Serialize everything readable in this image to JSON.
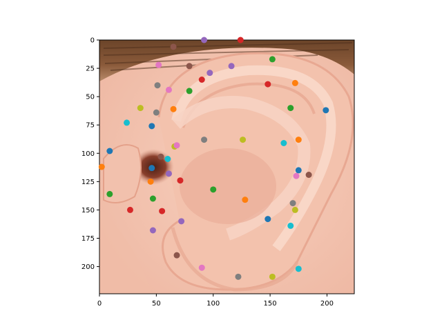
{
  "chart_data": {
    "type": "scatter",
    "title": "",
    "xlabel": "",
    "ylabel": "",
    "xlim": [
      0,
      224
    ],
    "ylim": [
      224,
      0
    ],
    "x_ticks": [
      0,
      50,
      100,
      150,
      200
    ],
    "y_ticks": [
      0,
      25,
      50,
      75,
      100,
      125,
      150,
      175,
      200
    ],
    "background": "photo of a human ear (right ear, side view)",
    "grid": false,
    "legend": "none",
    "points": [
      {
        "x": 92,
        "y": 0,
        "color": "#9467bd"
      },
      {
        "x": 124,
        "y": 0,
        "color": "#d62728"
      },
      {
        "x": 65,
        "y": 6,
        "color": "#8c564b"
      },
      {
        "x": 152,
        "y": 17,
        "color": "#2ca02c"
      },
      {
        "x": 52,
        "y": 22,
        "color": "#e377c2"
      },
      {
        "x": 79,
        "y": 23,
        "color": "#8c564b"
      },
      {
        "x": 116,
        "y": 23,
        "color": "#9467bd"
      },
      {
        "x": 97,
        "y": 29,
        "color": "#9467bd"
      },
      {
        "x": 90,
        "y": 35,
        "color": "#d62728"
      },
      {
        "x": 148,
        "y": 39,
        "color": "#d62728"
      },
      {
        "x": 172,
        "y": 38,
        "color": "#ff7f0e"
      },
      {
        "x": 51,
        "y": 40,
        "color": "#7f7f7f"
      },
      {
        "x": 61,
        "y": 44,
        "color": "#e377c2"
      },
      {
        "x": 79,
        "y": 45,
        "color": "#2ca02c"
      },
      {
        "x": 36,
        "y": 60,
        "color": "#bcbd22"
      },
      {
        "x": 65,
        "y": 61,
        "color": "#ff7f0e"
      },
      {
        "x": 50,
        "y": 64,
        "color": "#7f7f7f"
      },
      {
        "x": 168,
        "y": 60,
        "color": "#2ca02c"
      },
      {
        "x": 199,
        "y": 62,
        "color": "#1f77b4"
      },
      {
        "x": 24,
        "y": 73,
        "color": "#17becf"
      },
      {
        "x": 46,
        "y": 76,
        "color": "#1f77b4"
      },
      {
        "x": 9,
        "y": 98,
        "color": "#1f77b4"
      },
      {
        "x": 66,
        "y": 94,
        "color": "#bcbd22"
      },
      {
        "x": 68,
        "y": 93,
        "color": "#e377c2"
      },
      {
        "x": 92,
        "y": 88,
        "color": "#7f7f7f"
      },
      {
        "x": 126,
        "y": 88,
        "color": "#bcbd22"
      },
      {
        "x": 162,
        "y": 91,
        "color": "#17becf"
      },
      {
        "x": 175,
        "y": 88,
        "color": "#ff7f0e"
      },
      {
        "x": 54,
        "y": 103,
        "color": "#8c564b"
      },
      {
        "x": 60,
        "y": 105,
        "color": "#17becf"
      },
      {
        "x": 2,
        "y": 112,
        "color": "#ff7f0e"
      },
      {
        "x": 46,
        "y": 113,
        "color": "#1f77b4"
      },
      {
        "x": 61,
        "y": 118,
        "color": "#9467bd"
      },
      {
        "x": 175,
        "y": 115,
        "color": "#1f77b4"
      },
      {
        "x": 173,
        "y": 120,
        "color": "#e377c2"
      },
      {
        "x": 184,
        "y": 119,
        "color": "#8c564b"
      },
      {
        "x": 45,
        "y": 125,
        "color": "#ff7f0e"
      },
      {
        "x": 71,
        "y": 124,
        "color": "#d62728"
      },
      {
        "x": 100,
        "y": 132,
        "color": "#2ca02c"
      },
      {
        "x": 9,
        "y": 136,
        "color": "#2ca02c"
      },
      {
        "x": 47,
        "y": 140,
        "color": "#2ca02c"
      },
      {
        "x": 128,
        "y": 141,
        "color": "#ff7f0e"
      },
      {
        "x": 170,
        "y": 144,
        "color": "#7f7f7f"
      },
      {
        "x": 27,
        "y": 150,
        "color": "#d62728"
      },
      {
        "x": 55,
        "y": 151,
        "color": "#d62728"
      },
      {
        "x": 172,
        "y": 150,
        "color": "#bcbd22"
      },
      {
        "x": 148,
        "y": 158,
        "color": "#1f77b4"
      },
      {
        "x": 72,
        "y": 160,
        "color": "#9467bd"
      },
      {
        "x": 168,
        "y": 164,
        "color": "#17becf"
      },
      {
        "x": 47,
        "y": 168,
        "color": "#9467bd"
      },
      {
        "x": 68,
        "y": 190,
        "color": "#8c564b"
      },
      {
        "x": 90,
        "y": 201,
        "color": "#e377c2"
      },
      {
        "x": 175,
        "y": 202,
        "color": "#17becf"
      },
      {
        "x": 122,
        "y": 209,
        "color": "#7f7f7f"
      },
      {
        "x": 152,
        "y": 209,
        "color": "#bcbd22"
      }
    ]
  }
}
